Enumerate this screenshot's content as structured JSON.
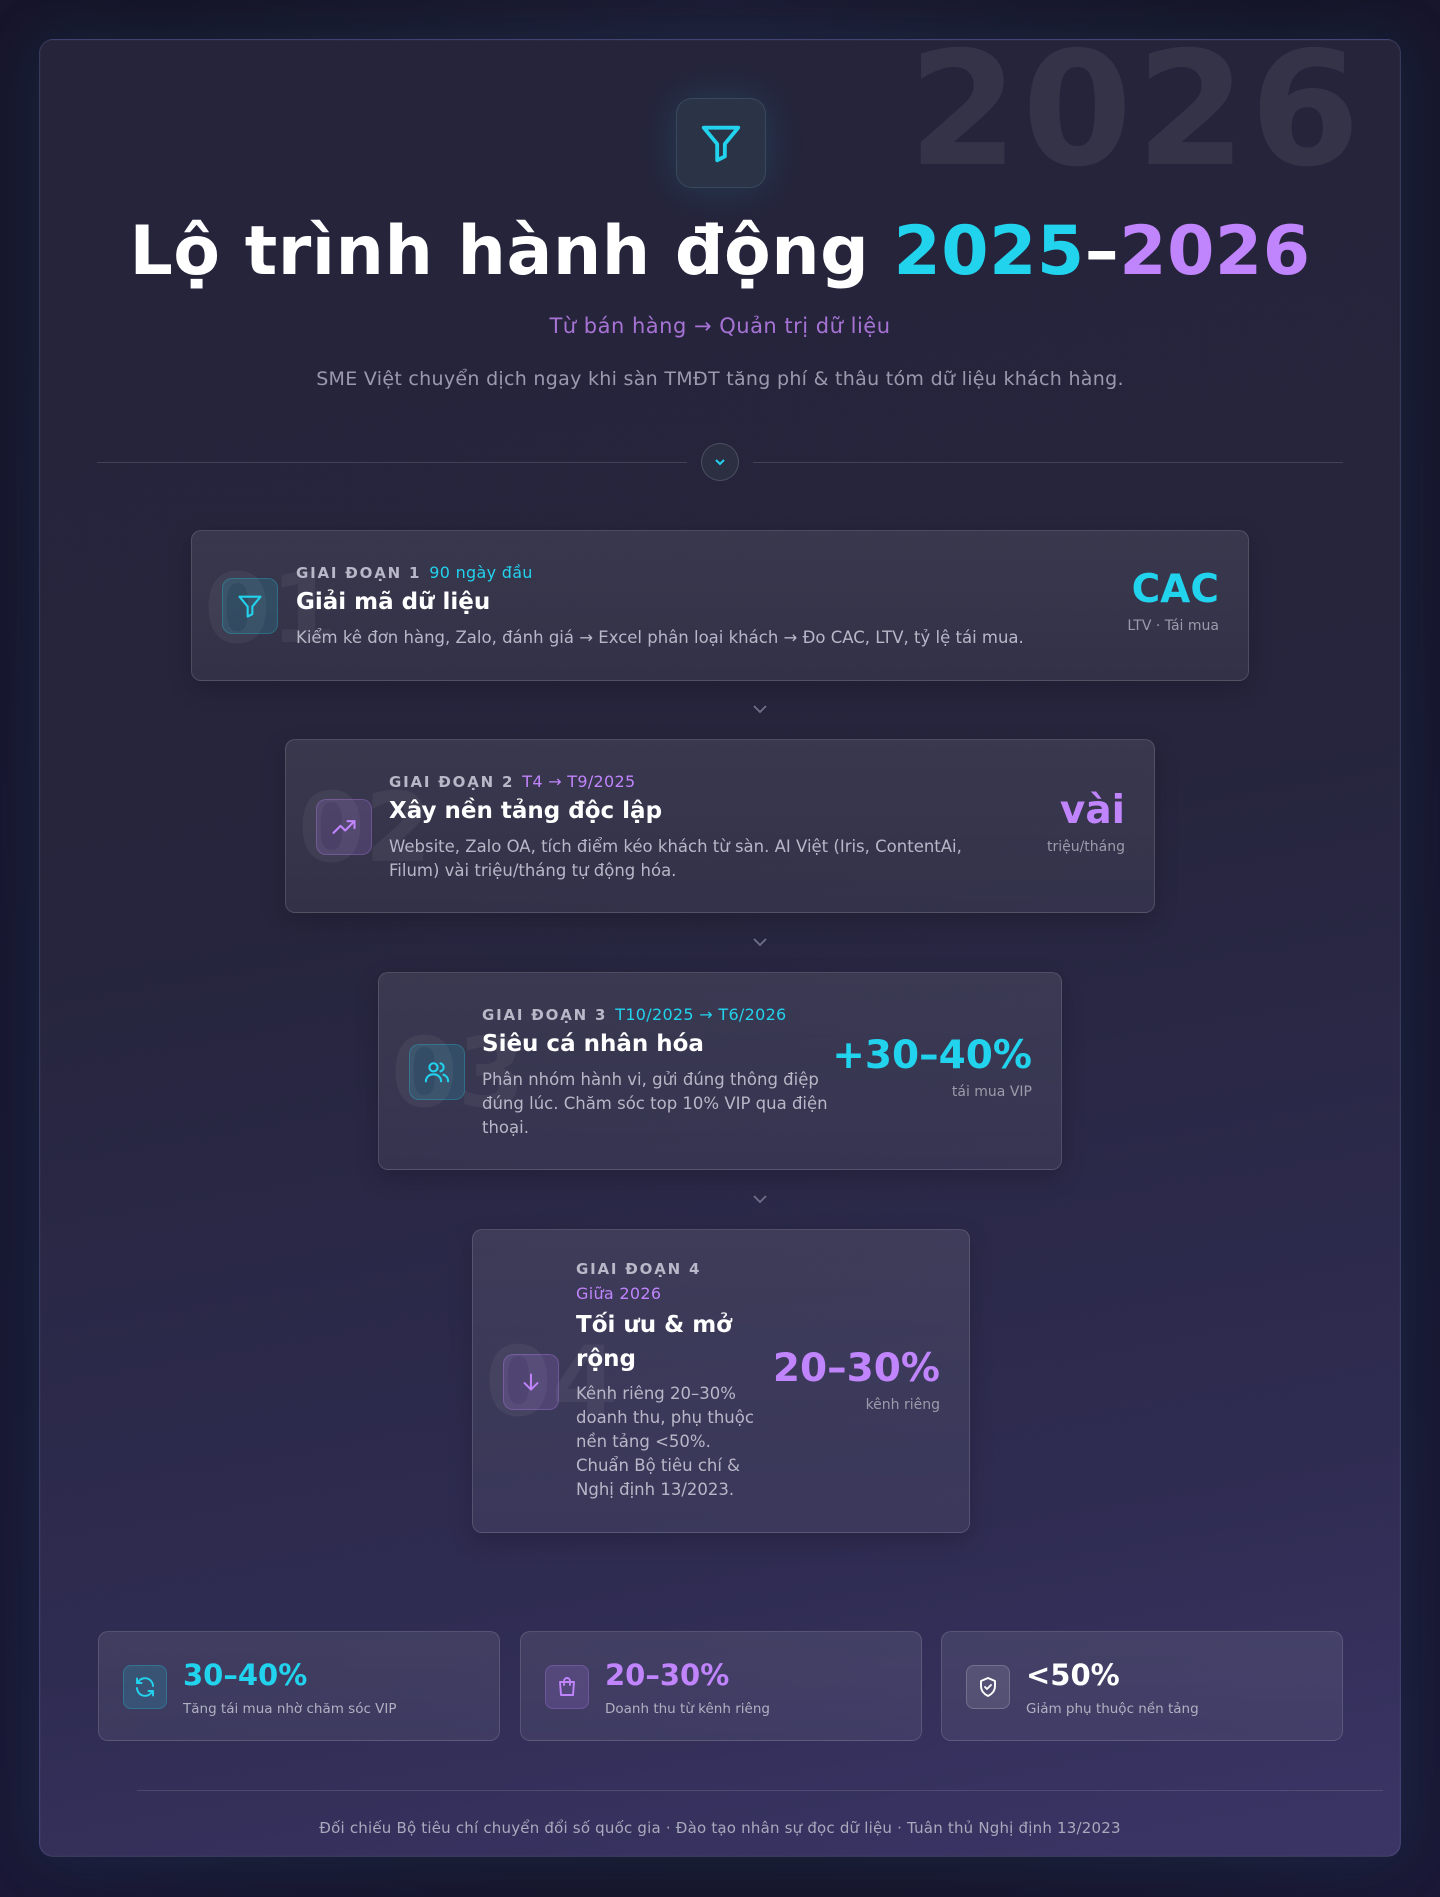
{
  "watermark": "2026",
  "header": {
    "icon": "funnel-icon",
    "title_main": "Lộ trình hành động ",
    "title_year1": "2025",
    "title_dash": "–",
    "title_year2": "2026",
    "subtitle": "Từ bán hàng → Quản trị dữ liệu",
    "description": "SME Việt chuyển dịch ngay khi sàn TMĐT tăng phí & thâu tóm dữ liệu khách hàng."
  },
  "divider_icon": "chevron-down-icon",
  "phases": [
    {
      "number": "01",
      "label": "GIAI ĐOẠN 1",
      "time": "90 ngày đầu",
      "title": "Giải mã dữ liệu",
      "body": "Kiểm kê đơn hàng, Zalo, đánh giá → Excel phân loại khách → Đo CAC, LTV, tỷ lệ tái mua.",
      "metric_value": "CAC",
      "metric_label": "LTV · Tái mua",
      "icon": "funnel-icon",
      "accent": "#22d3ee"
    },
    {
      "number": "02",
      "label": "GIAI ĐOẠN 2",
      "time": "T4 → T9/2025",
      "title": "Xây nền tảng độc lập",
      "body": "Website, Zalo OA, tích điểm kéo khách từ sàn. AI Việt (Iris, ContentAi, Filum) vài triệu/tháng tự động hóa.",
      "metric_value": "vài",
      "metric_label": "triệu/tháng",
      "icon": "trending-up-icon",
      "accent": "#c084fc"
    },
    {
      "number": "03",
      "label": "GIAI ĐOẠN 3",
      "time": "T10/2025 → T6/2026",
      "title": "Siêu cá nhân hóa",
      "body": "Phân nhóm hành vi, gửi đúng thông điệp đúng lúc. Chăm sóc top 10% VIP qua điện thoại.",
      "metric_value": "+30–40%",
      "metric_label": "tái mua VIP",
      "icon": "users-icon",
      "accent": "#22d3ee"
    },
    {
      "number": "04",
      "label": "GIAI ĐOẠN 4",
      "time": "Giữa 2026",
      "title": "Tối ưu & mở rộng",
      "body": "Kênh riêng 20–30% doanh thu, phụ thuộc nền tảng <50%. Chuẩn Bộ tiêu chí & Nghị định 13/2023.",
      "metric_value": "20–30%",
      "metric_label": "kênh riêng",
      "icon": "arrow-down-icon",
      "accent": "#c084fc"
    }
  ],
  "stats": [
    {
      "value": "30–40%",
      "label": "Tăng tái mua nhờ chăm sóc VIP",
      "icon": "refresh-icon",
      "color": "#22d3ee"
    },
    {
      "value": "20–30%",
      "label": "Doanh thu từ kênh riêng",
      "icon": "shopping-bag-icon",
      "color": "#c084fc"
    },
    {
      "value": "<50%",
      "label": "Giảm phụ thuộc nền tảng",
      "icon": "shield-check-icon",
      "color": "#ffffff"
    }
  ],
  "footer": "Đối chiếu Bộ tiêu chí chuyển đổi số quốc gia · Đào tạo nhân sự đọc dữ liệu · Tuân thủ Nghị định 13/2023"
}
